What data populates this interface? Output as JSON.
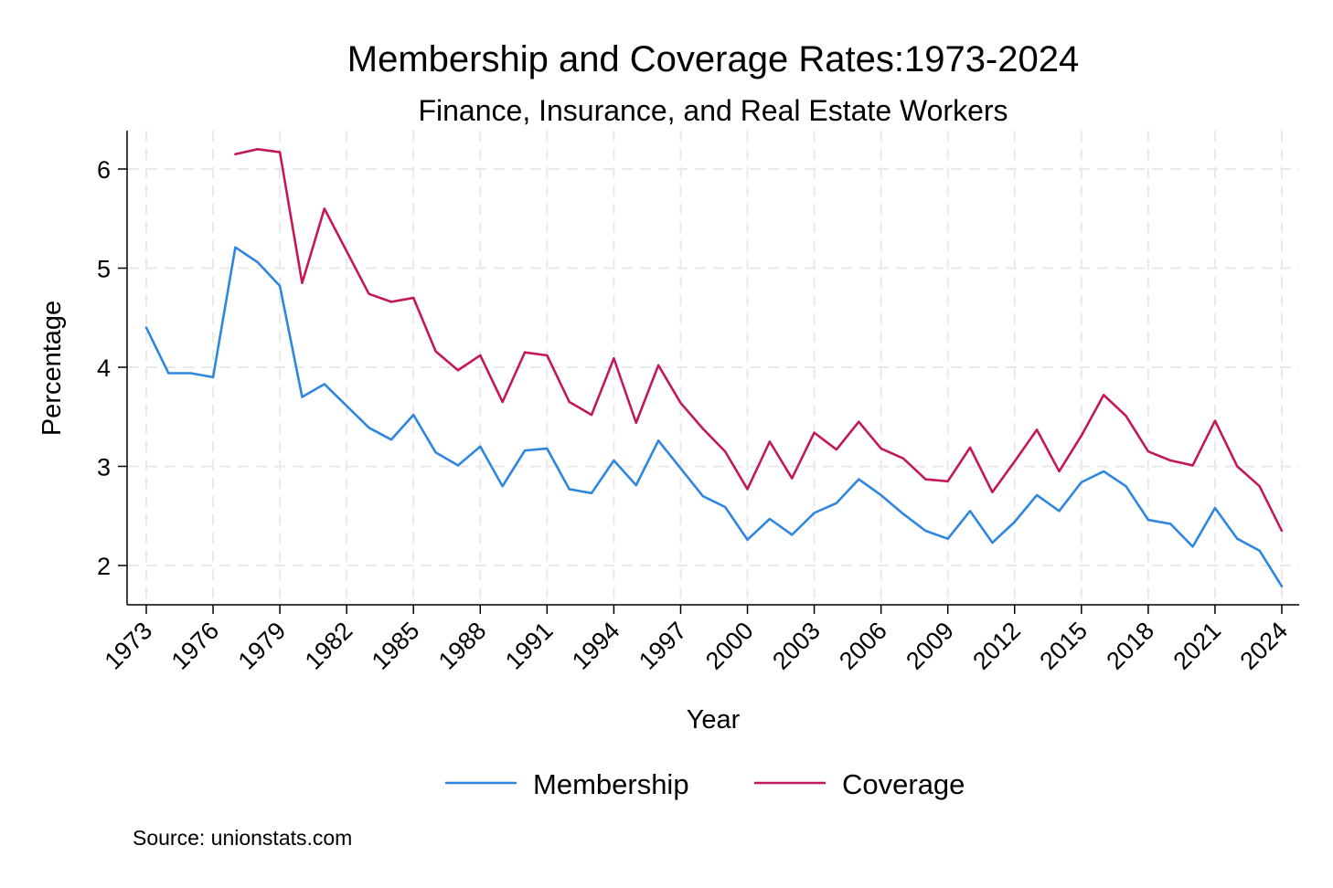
{
  "chart_data": {
    "type": "line",
    "title": "Membership and Coverage Rates:1973-2024",
    "subtitle": "Finance, Insurance, and Real Estate Workers",
    "xlabel": "Year",
    "ylabel": "Percentage",
    "source": "Source: unionstats.com",
    "xlim": [
      1973,
      2024
    ],
    "ylim": [
      1.6,
      6.4
    ],
    "x_ticks": [
      1973,
      1976,
      1979,
      1982,
      1985,
      1988,
      1991,
      1994,
      1997,
      2000,
      2003,
      2006,
      2009,
      2012,
      2015,
      2018,
      2021,
      2024
    ],
    "y_ticks": [
      2,
      3,
      4,
      5,
      6
    ],
    "grid": true,
    "legend_position": "bottom",
    "series": [
      {
        "name": "Membership",
        "color": "#2e86e0",
        "x": [
          1973,
          1974,
          1975,
          1976,
          1977,
          1978,
          1979,
          1980,
          1981,
          1982,
          1983,
          1984,
          1985,
          1986,
          1987,
          1988,
          1989,
          1990,
          1991,
          1992,
          1993,
          1994,
          1995,
          1996,
          1997,
          1998,
          1999,
          2000,
          2001,
          2002,
          2003,
          2004,
          2005,
          2006,
          2007,
          2008,
          2009,
          2010,
          2011,
          2012,
          2013,
          2014,
          2015,
          2016,
          2017,
          2018,
          2019,
          2020,
          2021,
          2022,
          2023,
          2024
        ],
        "values": [
          4.4,
          3.94,
          3.94,
          3.9,
          5.21,
          5.06,
          4.82,
          3.7,
          3.83,
          3.61,
          3.39,
          3.27,
          3.52,
          3.14,
          3.01,
          3.2,
          2.8,
          3.16,
          3.18,
          2.77,
          2.73,
          3.06,
          2.81,
          3.26,
          2.98,
          2.7,
          2.59,
          2.26,
          2.47,
          2.31,
          2.53,
          2.63,
          2.87,
          2.71,
          2.52,
          2.35,
          2.27,
          2.55,
          2.23,
          2.44,
          2.71,
          2.55,
          2.84,
          2.95,
          2.8,
          2.46,
          2.42,
          2.19,
          2.58,
          2.27,
          2.15,
          1.79
        ]
      },
      {
        "name": "Coverage",
        "color": "#c2185b",
        "x": [
          1977,
          1978,
          1979,
          1980,
          1981,
          1982,
          1983,
          1984,
          1985,
          1986,
          1987,
          1988,
          1989,
          1990,
          1991,
          1992,
          1993,
          1994,
          1995,
          1996,
          1997,
          1998,
          1999,
          2000,
          2001,
          2002,
          2003,
          2004,
          2005,
          2006,
          2007,
          2008,
          2009,
          2010,
          2011,
          2012,
          2013,
          2014,
          2015,
          2016,
          2017,
          2018,
          2019,
          2020,
          2021,
          2022,
          2023,
          2024
        ],
        "values": [
          6.15,
          6.2,
          6.17,
          4.85,
          5.6,
          5.17,
          4.74,
          4.66,
          4.7,
          4.16,
          3.97,
          4.12,
          3.65,
          4.15,
          4.12,
          3.65,
          3.52,
          4.09,
          3.44,
          4.02,
          3.64,
          3.38,
          3.15,
          2.77,
          3.25,
          2.88,
          3.34,
          3.17,
          3.45,
          3.18,
          3.08,
          2.87,
          2.85,
          3.19,
          2.74,
          3.05,
          3.37,
          2.95,
          3.31,
          3.72,
          3.51,
          3.15,
          3.06,
          3.01,
          3.46,
          3.0,
          2.8,
          2.35
        ]
      }
    ]
  }
}
